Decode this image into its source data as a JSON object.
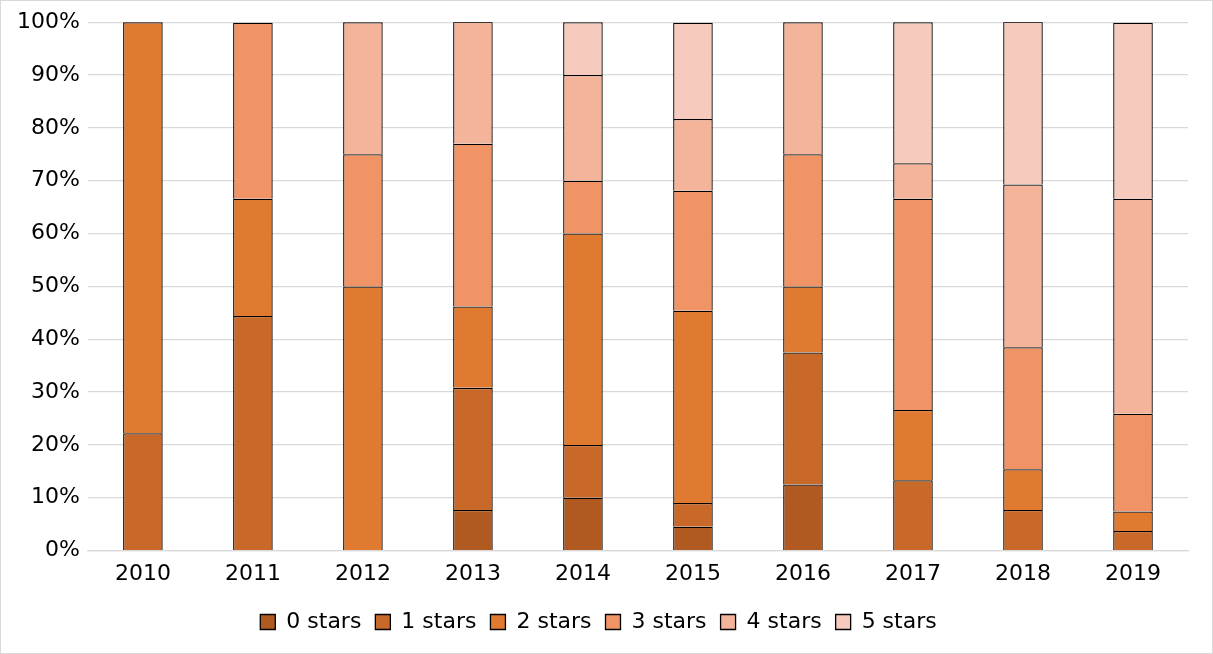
{
  "chart_data": {
    "type": "bar",
    "stacked": true,
    "categories": [
      "2010",
      "2011",
      "2012",
      "2013",
      "2014",
      "2015",
      "2016",
      "2017",
      "2018",
      "2019"
    ],
    "series": [
      {
        "name": "0 stars",
        "color": "#b05a22",
        "values": [
          null,
          null,
          null,
          7.7,
          10,
          4.5,
          12.5,
          null,
          null,
          null
        ]
      },
      {
        "name": "1 stars",
        "color": "#c8692a",
        "values": [
          22.2,
          44.4,
          null,
          23.1,
          10,
          4.5,
          25,
          13.3,
          7.7,
          3.7
        ]
      },
      {
        "name": "2 stars",
        "color": "#e07a30",
        "values": [
          77.8,
          22.2,
          50,
          15.4,
          40,
          36.4,
          12.5,
          13.3,
          7.7,
          3.7
        ]
      },
      {
        "name": "3 stars",
        "color": "#f09466",
        "values": [
          null,
          33.3,
          25,
          30.8,
          10,
          22.7,
          25,
          40,
          23.1,
          18.5
        ]
      },
      {
        "name": "4 stars",
        "color": "#f4b49a",
        "values": [
          null,
          null,
          25,
          23.1,
          20,
          13.6,
          25,
          6.7,
          30.8,
          40.7
        ]
      },
      {
        "name": "5 stars",
        "color": "#f6cbbd",
        "values": [
          null,
          null,
          null,
          null,
          10,
          18.2,
          null,
          26.7,
          30.8,
          33.3
        ]
      }
    ],
    "ylim": [
      0,
      100
    ],
    "yticks": [
      {
        "value": 0,
        "label": "0%"
      },
      {
        "value": 10,
        "label": "10%"
      },
      {
        "value": 20,
        "label": "20%"
      },
      {
        "value": 30,
        "label": "30%"
      },
      {
        "value": 40,
        "label": "40%"
      },
      {
        "value": 50,
        "label": "50%"
      },
      {
        "value": 60,
        "label": "60%"
      },
      {
        "value": 70,
        "label": "70%"
      },
      {
        "value": 80,
        "label": "80%"
      },
      {
        "value": 90,
        "label": "90%"
      },
      {
        "value": 100,
        "label": "100%"
      }
    ],
    "grid": "y",
    "legend": "bottom"
  }
}
